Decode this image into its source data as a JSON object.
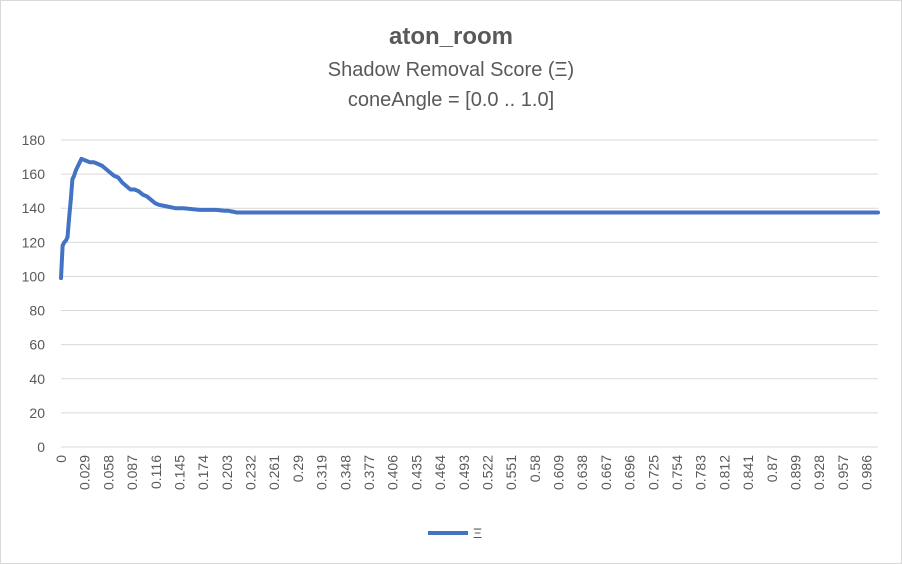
{
  "chart_data": {
    "type": "line",
    "title": "aton_room",
    "subtitle": "Shadow Removal Score (Ξ)",
    "subtitle2": "coneAngle = [0.0 .. 1.0]",
    "xlabel": "",
    "ylabel": "",
    "ylim": [
      0,
      180
    ],
    "yticks": [
      "0",
      "20",
      "40",
      "60",
      "80",
      "100",
      "120",
      "140",
      "160",
      "180"
    ],
    "xlim": [
      0,
      1.0
    ],
    "xticks": [
      "0",
      "0.029",
      "0.058",
      "0.087",
      "0.116",
      "0.145",
      "0.174",
      "0.203",
      "0.232",
      "0.261",
      "0.29",
      "0.319",
      "0.348",
      "0.377",
      "0.406",
      "0.435",
      "0.464",
      "0.493",
      "0.522",
      "0.551",
      "0.58",
      "0.609",
      "0.638",
      "0.667",
      "0.696",
      "0.725",
      "0.754",
      "0.783",
      "0.812",
      "0.841",
      "0.87",
      "0.899",
      "0.928",
      "0.957",
      "0.986"
    ],
    "grid": true,
    "legend_position": "bottom",
    "color": "#4472c4",
    "series": [
      {
        "name": "Ξ",
        "x": [
          0,
          0.002,
          0.004,
          0.006,
          0.008,
          0.01,
          0.012,
          0.014,
          0.016,
          0.018,
          0.02,
          0.022,
          0.025,
          0.03,
          0.035,
          0.04,
          0.045,
          0.05,
          0.055,
          0.06,
          0.065,
          0.07,
          0.075,
          0.08,
          0.085,
          0.09,
          0.095,
          0.1,
          0.105,
          0.11,
          0.115,
          0.12,
          0.13,
          0.14,
          0.15,
          0.16,
          0.17,
          0.18,
          0.19,
          0.2,
          0.205,
          0.21,
          0.215,
          0.22,
          0.25,
          0.3,
          0.4,
          0.5,
          0.6,
          0.7,
          0.8,
          0.9,
          1.0
        ],
        "values": [
          99,
          118,
          120,
          121,
          123,
          135,
          145,
          157,
          159,
          162,
          164,
          166,
          169,
          168,
          167,
          167,
          166,
          165,
          163,
          161,
          159,
          158,
          155,
          153,
          151,
          151,
          150,
          148,
          147,
          145,
          143,
          142,
          141,
          140,
          140,
          139.5,
          139,
          139,
          139,
          138.5,
          138.5,
          138,
          137.5,
          137.5,
          137.5,
          137.5,
          137.5,
          137.5,
          137.5,
          137.5,
          137.5,
          137.5,
          137.5
        ]
      }
    ]
  }
}
